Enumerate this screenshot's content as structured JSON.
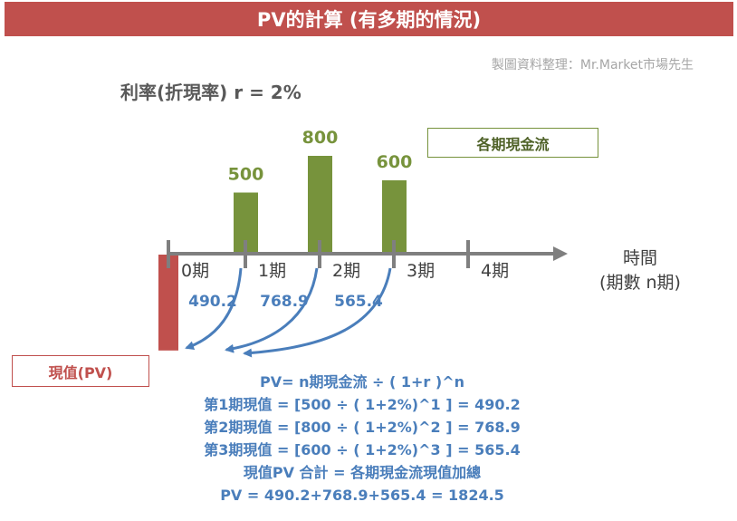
{
  "title": "PV的計算 (有多期的情況)",
  "credit": "製圖資料整理：Mr.Market市場先生",
  "rate_label": "利率(折現率) r = 2%",
  "legend_label": "各期現金流",
  "pv_label": "現值(PV)",
  "time_axis_label": [
    "時間",
    "(期數 n期)"
  ],
  "colors": {
    "title_bg": "#c0504d",
    "cashflow_bar": "#77933c",
    "pv_bar": "#c0504d",
    "arrow": "#4a7ebb",
    "axis": "#7f7f7f"
  },
  "chart_data": {
    "type": "bar",
    "categories": [
      "0期",
      "1期",
      "2期",
      "3期",
      "4期"
    ],
    "cash_flows": [
      null,
      500,
      800,
      600,
      null
    ],
    "cash_flow_labels": [
      "",
      "500",
      "800",
      "600",
      ""
    ],
    "present_values": [
      null,
      490.2,
      768.9,
      565.4,
      null
    ],
    "present_value_labels": [
      "",
      "490.2",
      "768.9",
      "565.4",
      ""
    ],
    "pv_total": 1824.5
  },
  "formulas": [
    "PV=  n期現金流  ÷ ( 1+r )^n",
    "第1期現值 = [500 ÷ ( 1+2%)^1 ] = 490.2",
    "第2期現值 = [800 ÷ ( 1+2%)^2 ] = 768.9",
    "第3期現值 = [600 ÷ ( 1+2%)^3 ] = 565.4",
    "現值PV 合計 = 各期現金流現值加總",
    "PV = 490.2+768.9+565.4 = 1824.5"
  ]
}
